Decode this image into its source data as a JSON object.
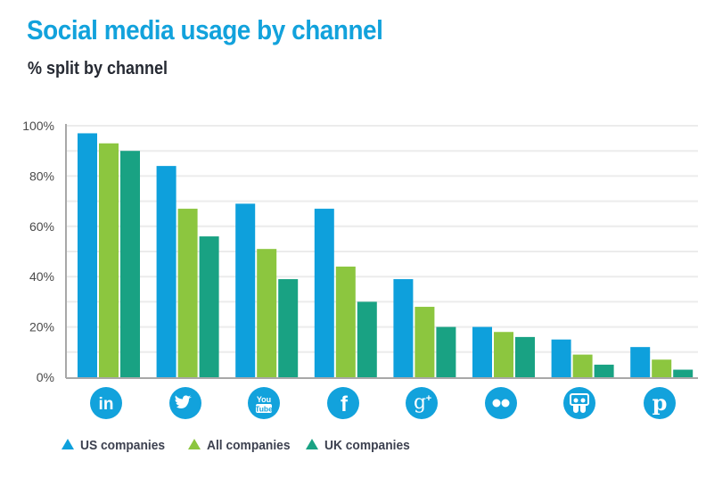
{
  "chart_data": {
    "type": "bar",
    "title": "Social media usage by channel",
    "subtitle": "% split by channel",
    "xlabel": "",
    "ylabel": "",
    "ylim": [
      0,
      100
    ],
    "y_ticks": [
      "0%",
      "20%",
      "40%",
      "60%",
      "80%",
      "100%"
    ],
    "y_tick_values": [
      0,
      20,
      40,
      60,
      80,
      100
    ],
    "grid": true,
    "legend_position": "bottom-left",
    "categories": [
      "LinkedIn",
      "Twitter",
      "YouTube",
      "Facebook",
      "Google+",
      "Flickr",
      "SlideShare",
      "Pinterest"
    ],
    "category_icons": [
      "linkedin-icon",
      "twitter-icon",
      "youtube-icon",
      "facebook-icon",
      "google-plus-icon",
      "flickr-icon",
      "slideshare-icon",
      "pinterest-icon"
    ],
    "series": [
      {
        "name": "US companies",
        "color": "#0ea0dc",
        "values": [
          97,
          84,
          69,
          67,
          39,
          20,
          15,
          12
        ]
      },
      {
        "name": "All companies",
        "color": "#8cc63f",
        "values": [
          93,
          67,
          51,
          44,
          28,
          18,
          9,
          7
        ]
      },
      {
        "name": "UK companies",
        "color": "#19a283",
        "values": [
          90,
          56,
          39,
          30,
          20,
          16,
          5,
          3
        ]
      }
    ]
  },
  "colors": {
    "title": "#12a2dc",
    "icon": "#12a2dc"
  }
}
